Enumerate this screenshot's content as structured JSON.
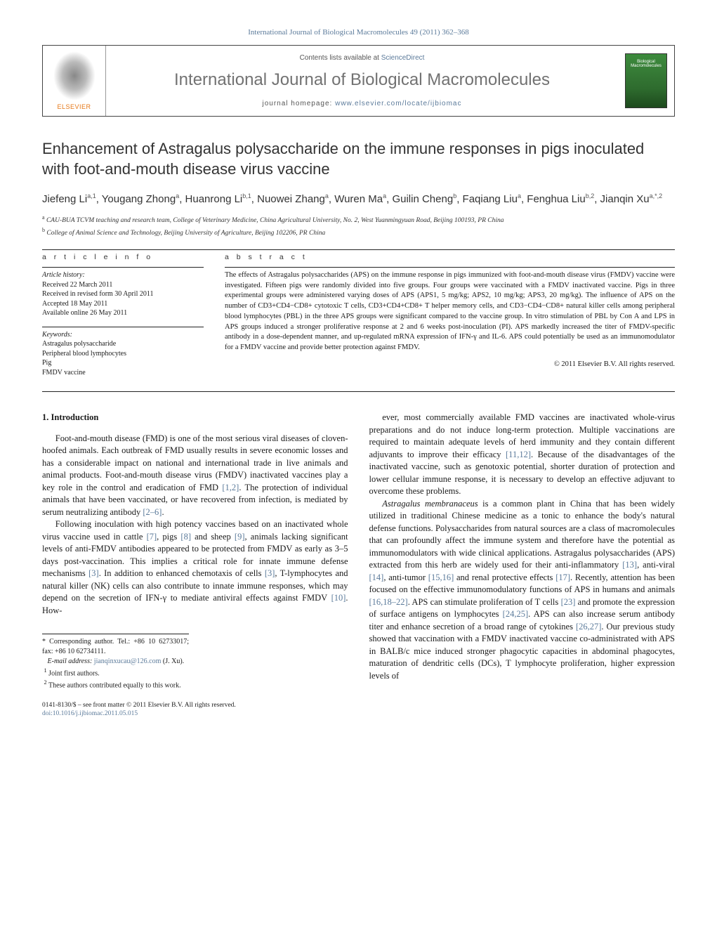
{
  "header_ref": "International Journal of Biological Macromolecules 49 (2011) 362–368",
  "journal_header": {
    "elsevier": "ELSEVIER",
    "contents_prefix": "Contents lists available at ",
    "contents_link": "ScienceDirect",
    "journal_title": "International Journal of Biological Macromolecules",
    "homepage_prefix": "journal homepage: ",
    "homepage_url": "www.elsevier.com/locate/ijbiomac",
    "cover_line1": "Biological",
    "cover_line2": "Macromolecules"
  },
  "title": "Enhancement of Astragalus polysaccharide on the immune responses in pigs inoculated with foot-and-mouth disease virus vaccine",
  "authors_html": "Jiefeng Li<sup>a,1</sup>, Yougang Zhong<sup>a</sup>, Huanrong Li<sup>b,1</sup>, Nuowei Zhang<sup>a</sup>, Wuren Ma<sup>a</sup>, Guilin Cheng<sup>b</sup>, Faqiang Liu<sup>a</sup>, Fenghua Liu<sup>b,2</sup>, Jianqin Xu<sup>a,*,2</sup>",
  "affiliations": [
    {
      "sup": "a",
      "text": "CAU-BUA TCVM teaching and research team, College of Veterinary Medicine, China Agricultural University, No. 2, West Yuanmingyuan Road, Beijing 100193, PR China"
    },
    {
      "sup": "b",
      "text": "College of Animal Science and Technology, Beijing University of Agriculture, Beijing 102206, PR China"
    }
  ],
  "article_info": {
    "heading": "a r t i c l e   i n f o",
    "history_label": "Article history:",
    "received": "Received 22 March 2011",
    "revised": "Received in revised form 30 April 2011",
    "accepted": "Accepted 18 May 2011",
    "online": "Available online 26 May 2011",
    "keywords_label": "Keywords:",
    "keywords": [
      "Astragalus polysaccharide",
      "Peripheral blood lymphocytes",
      "Pig",
      "FMDV vaccine"
    ]
  },
  "abstract": {
    "heading": "a b s t r a c t",
    "text": "The effects of Astragalus polysaccharides (APS) on the immune response in pigs immunized with foot-and-mouth disease virus (FMDV) vaccine were investigated. Fifteen pigs were randomly divided into five groups. Four groups were vaccinated with a FMDV inactivated vaccine. Pigs in three experimental groups were administered varying doses of APS (APS1, 5 mg/kg; APS2, 10 mg/kg; APS3, 20 mg/kg). The influence of APS on the number of CD3+CD4−CD8+ cytotoxic T cells, CD3+CD4+CD8+ T helper memory cells, and CD3−CD4−CD8+ natural killer cells among peripheral blood lymphocytes (PBL) in the three APS groups were significant compared to the vaccine group. In vitro stimulation of PBL by Con A and LPS in APS groups induced a stronger proliferative response at 2 and 6 weeks post-inoculation (PI). APS markedly increased the titer of FMDV-specific antibody in a dose-dependent manner, and up-regulated mRNA expression of IFN-γ and IL-6. APS could potentially be used as an immunomodulator for a FMDV vaccine and provide better protection against FMDV.",
    "copyright": "© 2011 Elsevier B.V. All rights reserved."
  },
  "body": {
    "section_heading": "1. Introduction",
    "col1": [
      "Foot-and-mouth disease (FMD) is one of the most serious viral diseases of cloven-hoofed animals. Each outbreak of FMD usually results in severe economic losses and has a considerable impact on national and international trade in live animals and animal products. Foot-and-mouth disease virus (FMDV) inactivated vaccines play a key role in the control and eradication of FMD <span class='ref'>[1,2]</span>. The protection of individual animals that have been vaccinated, or have recovered from infection, is mediated by serum neutralizing antibody <span class='ref'>[2–6]</span>.",
      "Following inoculation with high potency vaccines based on an inactivated whole virus vaccine used in cattle <span class='ref'>[7]</span>, pigs <span class='ref'>[8]</span> and sheep <span class='ref'>[9]</span>, animals lacking significant levels of anti-FMDV antibodies appeared to be protected from FMDV as early as 3–5 days post-vaccination. This implies a critical role for innate immune defense mechanisms <span class='ref'>[3]</span>. In addition to enhanced chemotaxis of cells <span class='ref'>[3]</span>, T-lymphocytes and natural killer (NK) cells can also contribute to innate immune responses, which may depend on the secretion of IFN-<span class='greek'>γ</span> to mediate antiviral effects against FMDV <span class='ref'>[10]</span>. How-"
    ],
    "col2": [
      "ever, most commercially available FMD vaccines are inactivated whole-virus preparations and do not induce long-term protection. Multiple vaccinations are required to maintain adequate levels of herd immunity and they contain different adjuvants to improve their efficacy <span class='ref'>[11,12]</span>. Because of the disadvantages of the inactivated vaccine, such as genotoxic potential, shorter duration of protection and lower cellular immune response, it is necessary to develop an effective adjuvant to overcome these problems.",
      "<i>Astragalus membranaceus</i> is a common plant in China that has been widely utilized in traditional Chinese medicine as a tonic to enhance the body's natural defense functions. Polysaccharides from natural sources are a class of macromolecules that can profoundly affect the immune system and therefore have the potential as immunomodulators with wide clinical applications. Astragalus polysaccharides (APS) extracted from this herb are widely used for their anti-inflammatory <span class='ref'>[13]</span>, anti-viral <span class='ref'>[14]</span>, anti-tumor <span class='ref'>[15,16]</span> and renal protective effects <span class='ref'>[17]</span>. Recently, attention has been focused on the effective immunomodulatory functions of APS in humans and animals <span class='ref'>[16,18–22]</span>. APS can stimulate proliferation of T cells <span class='ref'>[23]</span> and promote the expression of surface antigens on lymphocytes <span class='ref'>[24,25]</span>. APS can also increase serum antibody titer and enhance secretion of a broad range of cytokines <span class='ref'>[26,27]</span>. Our previous study showed that vaccination with a FMDV inactivated vaccine co-administrated with APS in BALB/c mice induced stronger phagocytic capacities in abdominal phagocytes, maturation of dendritic cells (DCs), T lymphocyte proliferation, higher expression levels of"
    ]
  },
  "footnotes": {
    "corresponding": "* Corresponding author. Tel.: +86 10 62733017; fax: +86 10 62734111.",
    "email_label": "E-mail address:",
    "email": "jianqinxucau@126.com",
    "email_suffix": "(J. Xu).",
    "note1": "1 Joint first authors.",
    "note2": "2 These authors contributed equally to this work."
  },
  "footer": {
    "line1": "0141-8130/$ – see front matter © 2011 Elsevier B.V. All rights reserved.",
    "doi": "doi:10.1016/j.ijbiomac.2011.05.015"
  },
  "colors": {
    "link": "#5b7a9a",
    "text": "#1a1a1a",
    "title_gray": "#727272",
    "elsevier_orange": "#e67817",
    "cover_green": "#3d8b3d"
  },
  "typography": {
    "body_font": "Times New Roman",
    "title_font": "Arial",
    "title_size_pt": 22,
    "author_size_pt": 15,
    "body_size_pt": 12.5,
    "abstract_size_pt": 10.5,
    "affiliation_size_pt": 9.5
  }
}
